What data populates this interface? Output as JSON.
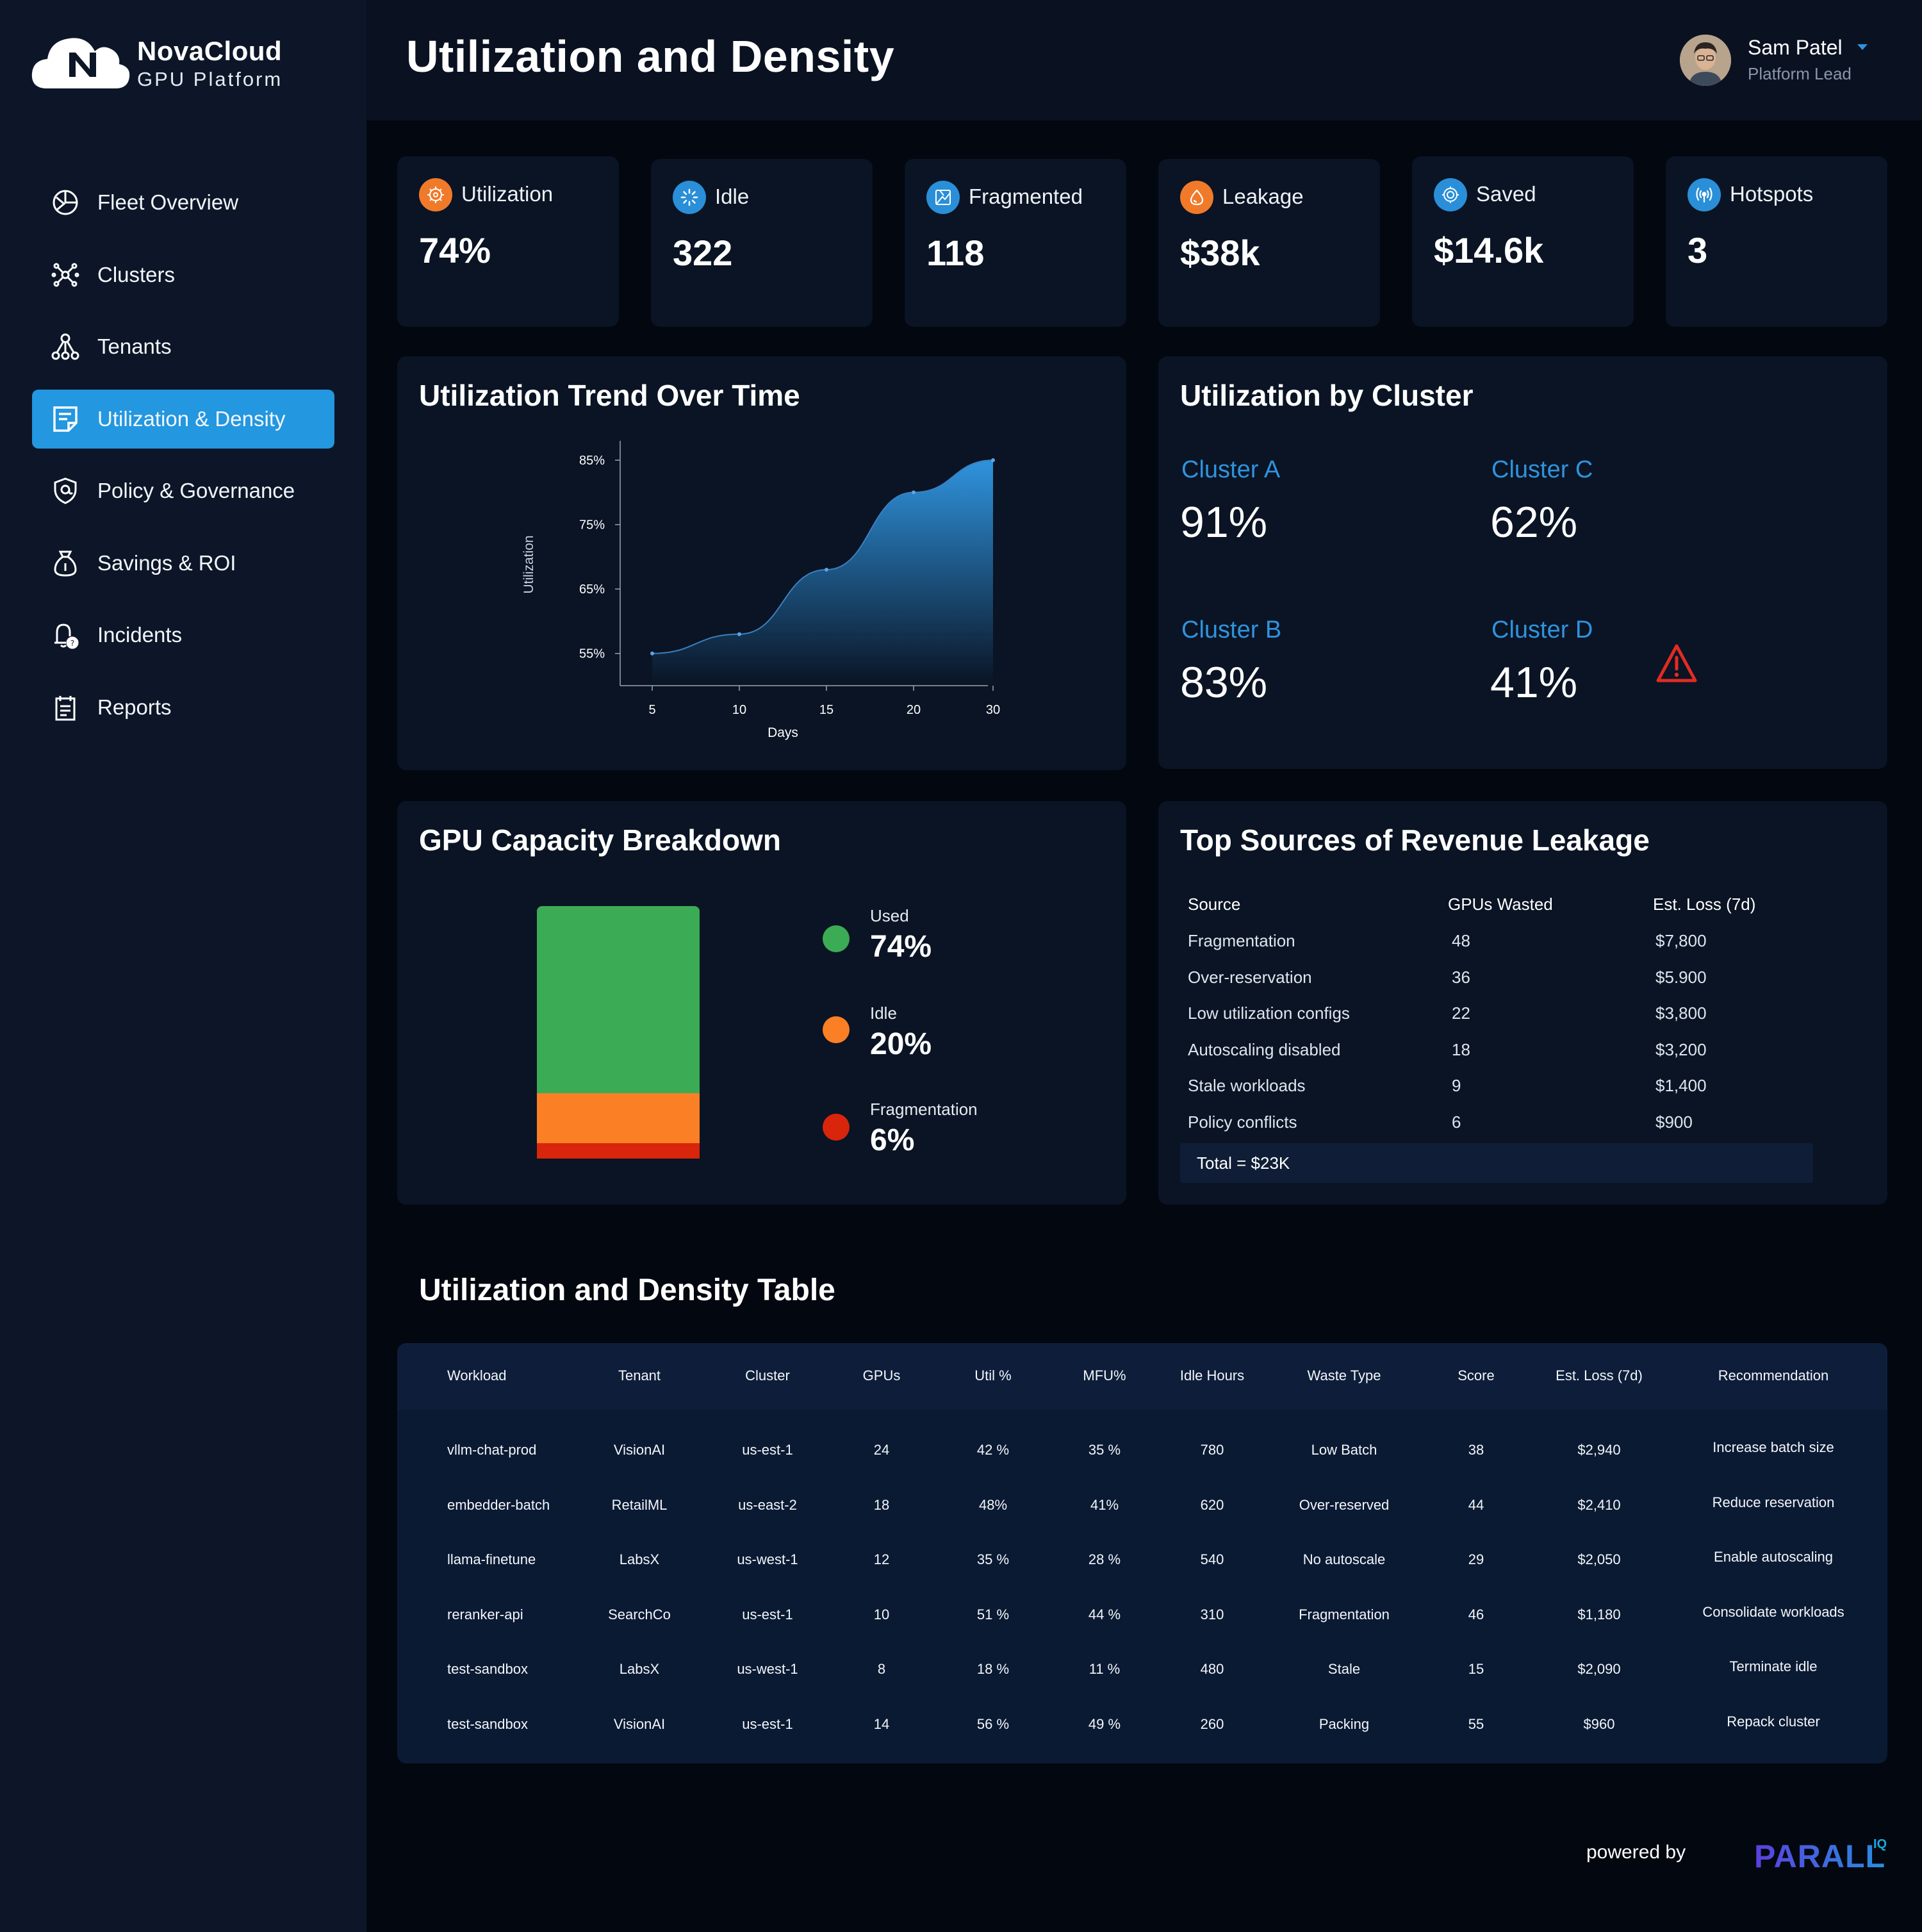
{
  "brand": {
    "name": "NovaCloud",
    "subtitle": "GPU Platform"
  },
  "header": {
    "title": "Utilization and Density"
  },
  "user": {
    "name": "Sam Patel",
    "role": "Platform Lead"
  },
  "sidebar": {
    "items": [
      {
        "label": "Fleet Overview",
        "icon": "gauge-icon",
        "active": false
      },
      {
        "label": "Clusters",
        "icon": "cluster-icon",
        "active": false
      },
      {
        "label": "Tenants",
        "icon": "tenants-icon",
        "active": false
      },
      {
        "label": "Utilization & Density",
        "icon": "document-icon",
        "active": true
      },
      {
        "label": "Policy & Governance",
        "icon": "shield-icon",
        "active": false
      },
      {
        "label": "Savings & ROI",
        "icon": "money-bag-icon",
        "active": false
      },
      {
        "label": "Incidents",
        "icon": "alert-bell-icon",
        "active": false
      },
      {
        "label": "Reports",
        "icon": "report-icon",
        "active": false
      }
    ]
  },
  "kpis": [
    {
      "label": "Utilization",
      "value": "74%",
      "icon": "gauge-icon",
      "color": "#f07a2a"
    },
    {
      "label": "Idle",
      "value": "322",
      "icon": "loading-icon",
      "color": "#2a8fd8"
    },
    {
      "label": "Fragmented",
      "value": "118",
      "icon": "fragment-icon",
      "color": "#2a8fd8"
    },
    {
      "label": "Leakage",
      "value": "$38k",
      "icon": "drop-icon",
      "color": "#f07a2a"
    },
    {
      "label": "Saved",
      "value": "$14.6k",
      "icon": "savings-icon",
      "color": "#2a8fd8"
    },
    {
      "label": "Hotspots",
      "value": "3",
      "icon": "signal-icon",
      "color": "#2a8fd8"
    }
  ],
  "trend": {
    "title": "Utilization Trend Over Time",
    "chart_data": {
      "type": "area",
      "x": [
        5,
        10,
        15,
        20,
        30
      ],
      "y": [
        55,
        58,
        68,
        80,
        85
      ],
      "xlabel": "Days",
      "ylabel": "Utilization",
      "x_ticks": [
        "5",
        "10",
        "15",
        "20",
        "30"
      ],
      "y_ticks": [
        "55%",
        "65%",
        "75%",
        "85%"
      ],
      "y_tick_values": [
        55,
        65,
        75,
        85
      ]
    }
  },
  "clusters": {
    "title": "Utilization by Cluster",
    "items": [
      {
        "name": "Cluster A",
        "value": "91%"
      },
      {
        "name": "Cluster C",
        "value": "62%"
      },
      {
        "name": "Cluster B",
        "value": "83%"
      },
      {
        "name": "Cluster D",
        "value": "41%",
        "alert": true
      }
    ]
  },
  "capacity": {
    "title": "GPU Capacity Breakdown",
    "chart_data": {
      "type": "bar",
      "stacked": true,
      "segments": [
        {
          "name": "Used",
          "value": 74,
          "label": "74%",
          "color": "#3cab55"
        },
        {
          "name": "Idle",
          "value": 20,
          "label": "20%",
          "color": "#fb7f24"
        },
        {
          "name": "Fragmentation",
          "value": 6,
          "label": "6%",
          "color": "#d8250c"
        }
      ]
    }
  },
  "leakage": {
    "title": "Top Sources of Revenue Leakage",
    "headers": [
      "Source",
      "GPUs Wasted",
      "Est. Loss (7d)"
    ],
    "rows": [
      [
        "Fragmentation",
        "48",
        "$7,800"
      ],
      [
        "Over-reservation",
        "36",
        "$5.900"
      ],
      [
        "Low utilization configs",
        "22",
        "$3,800"
      ],
      [
        "Autoscaling disabled",
        "18",
        "$3,200"
      ],
      [
        "Stale workloads",
        "9",
        "$1,400"
      ],
      [
        "Policy conflicts",
        "6",
        "$900"
      ]
    ],
    "total": "Total = $23K"
  },
  "table": {
    "title": "Utilization and Density Table",
    "headers": [
      "Workload",
      "Tenant",
      "Cluster",
      "GPUs",
      "Util %",
      "MFU%",
      "Idle Hours",
      "Waste Type",
      "Score",
      "Est. Loss (7d)",
      "Recommendation"
    ],
    "rows": [
      [
        "vllm-chat-prod",
        "VisionAI",
        "us-est-1",
        "24",
        "42 %",
        "35 %",
        "780",
        "Low Batch",
        "38",
        "$2,940",
        "Increase batch size"
      ],
      [
        "embedder-batch",
        "RetailML",
        "us-east-2",
        "18",
        "48%",
        "41%",
        "620",
        "Over-reserved",
        "44",
        "$2,410",
        "Reduce reservation"
      ],
      [
        "llama-finetune",
        "LabsX",
        "us-west-1",
        "12",
        "35 %",
        "28 %",
        "540",
        "No autoscale",
        "29",
        "$2,050",
        "Enable autoscaling"
      ],
      [
        "reranker-api",
        "SearchCo",
        "us-est-1",
        "10",
        "51 %",
        "44 %",
        "310",
        "Fragmentation",
        "46",
        "$1,180",
        "Consolidate workloads"
      ],
      [
        "test-sandbox",
        "LabsX",
        "us-west-1",
        "8",
        "18 %",
        "11 %",
        "480",
        "Stale",
        "15",
        "$2,090",
        "Terminate idle"
      ],
      [
        "test-sandbox",
        "VisionAI",
        "us-est-1",
        "14",
        "56 %",
        "49 %",
        "260",
        "Packing",
        "55",
        "$960",
        "Repack cluster"
      ]
    ]
  },
  "footer": {
    "powered_by": "powered by",
    "logo": "PARALLEL",
    "logo_sup": "IQ"
  }
}
